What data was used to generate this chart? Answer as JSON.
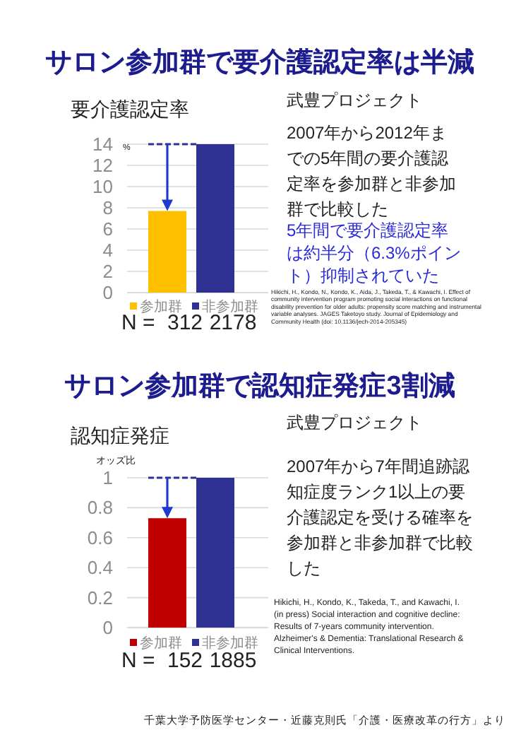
{
  "chart_data": [
    {
      "type": "bar",
      "title": "サロン参加群で要介護認定率は半減",
      "ylabel": "要介護認定率",
      "categories": [
        null
      ],
      "series": [
        {
          "name": "参加群",
          "color": "#ffc000",
          "values": [
            7.7
          ]
        },
        {
          "name": "非参加群",
          "color": "#2e3192",
          "values": [
            14.0
          ]
        }
      ],
      "ylim": [
        0,
        14
      ],
      "yticks": [
        0,
        2,
        4,
        6,
        8,
        10,
        12,
        14
      ],
      "grid": "y",
      "legend": "bottom",
      "ref_lines": [
        {
          "axis": "y",
          "value": 14,
          "color": "#2e3192",
          "line_style": "dashed"
        }
      ],
      "annotations": [
        "%",
        "N =",
        "312",
        "2178",
        "武豊プロジェクト",
        "2007年から2012年までの5年間の要介護認定率を参加群と非参加群で比較した",
        "5年間で要介護認定率は約半分（6.3%ポイント）抑制されていた",
        "Hikichi, H., Kondo, N., Kondo, K., Aida, J., Takeda, T., & Kawachi, I. Effect of community intervention program promoting social interactions on functional disability prevention for older adults: propensity score matching and instrumental variable analyses. JAGES Taketoyo study. Journal of Epidemiology and Community Health (doi: 10.1136/jech-2014-205345)"
      ]
    },
    {
      "type": "bar",
      "title": "サロン参加群で認知症発症3割減",
      "ylabel": "認知症発症",
      "categories": [
        null
      ],
      "series": [
        {
          "name": "参加群",
          "color": "#c00000",
          "values": [
            0.73
          ]
        },
        {
          "name": "非参加群",
          "color": "#2e3192",
          "values": [
            1
          ]
        }
      ],
      "ylim": [
        0,
        1
      ],
      "yticks": [
        0,
        0.2,
        0.4,
        0.6,
        0.8,
        1
      ],
      "grid": "y",
      "legend": "bottom",
      "ref_lines": [
        {
          "axis": "y",
          "value": 1,
          "color": "#2e3192",
          "line_style": "dashed"
        }
      ],
      "annotations": [
        "オッズ比",
        "N =",
        "152",
        "1885",
        "武豊プロジェクト",
        "2007年から7年間追跡認知症度ランク1以上の要介護認定を受ける確率を参加群と非参加群で比較した",
        "Hikichi, H., Kondo, K., Takeda, T., and Kawachi, I. (in press) Social interaction and cognitive decline: Results of 7-years community intervention. Alzheimer's & Dementia: Translational Research & Clinical Interventions.",
        "千葉大学予防医学センター・近藤克則氏「介護・医療改革の行方」より"
      ]
    }
  ]
}
